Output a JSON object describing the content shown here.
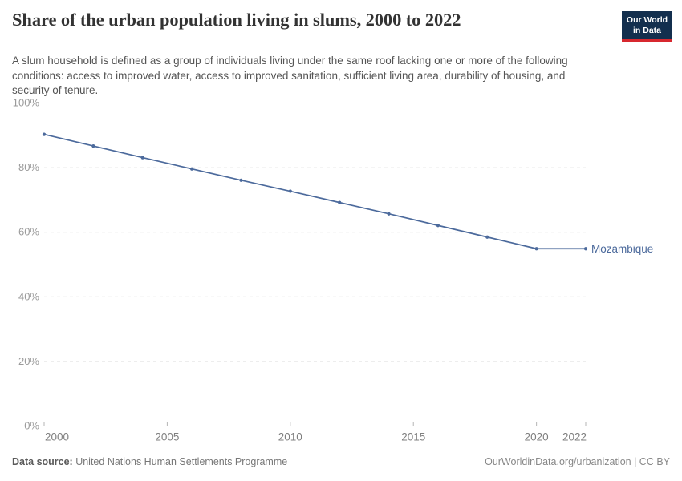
{
  "header": {
    "title": "Share of the urban population living in slums, 2000 to 2022",
    "subtitle": "A slum household is defined as a group of individuals living under the same roof lacking one or more of the following conditions: access to improved water, access to improved sanitation, sufficient living area, durability of housing, and security of tenure.",
    "logo": {
      "line1": "Our World",
      "line2": "in Data",
      "bg_color": "#132f4e",
      "accent_color": "#d7282f"
    }
  },
  "chart_data": {
    "type": "line",
    "title": "Share of the urban population living in slums, 2000 to 2022",
    "x": [
      2000,
      2002,
      2004,
      2006,
      2008,
      2010,
      2012,
      2014,
      2016,
      2018,
      2020,
      2022
    ],
    "series": [
      {
        "name": "Mozambique",
        "color": "#4c6a9c",
        "values": [
          90.3,
          86.7,
          83.1,
          79.6,
          76.1,
          72.7,
          69.2,
          65.7,
          62.1,
          58.5,
          54.9,
          54.9
        ]
      }
    ],
    "xlim": [
      2000,
      2022
    ],
    "ylim": [
      0,
      100
    ],
    "yticks": [
      {
        "value": 0,
        "label": "0%"
      },
      {
        "value": 20,
        "label": "20%"
      },
      {
        "value": 40,
        "label": "40%"
      },
      {
        "value": 60,
        "label": "60%"
      },
      {
        "value": 80,
        "label": "80%"
      },
      {
        "value": 100,
        "label": "100%"
      }
    ],
    "xticks": [
      {
        "value": 2000,
        "label": "2000"
      },
      {
        "value": 2005,
        "label": "2005"
      },
      {
        "value": 2010,
        "label": "2010"
      },
      {
        "value": 2015,
        "label": "2015"
      },
      {
        "value": 2020,
        "label": "2020"
      },
      {
        "value": 2022,
        "label": "2022"
      }
    ],
    "xlabel": "",
    "ylabel": "",
    "grid": "horizontal-dashed",
    "legend": "series label at end of line"
  },
  "footer": {
    "source_label": "Data source:",
    "source_value": " United Nations Human Settlements Programme",
    "credit": "OurWorldinData.org/urbanization | CC BY"
  }
}
